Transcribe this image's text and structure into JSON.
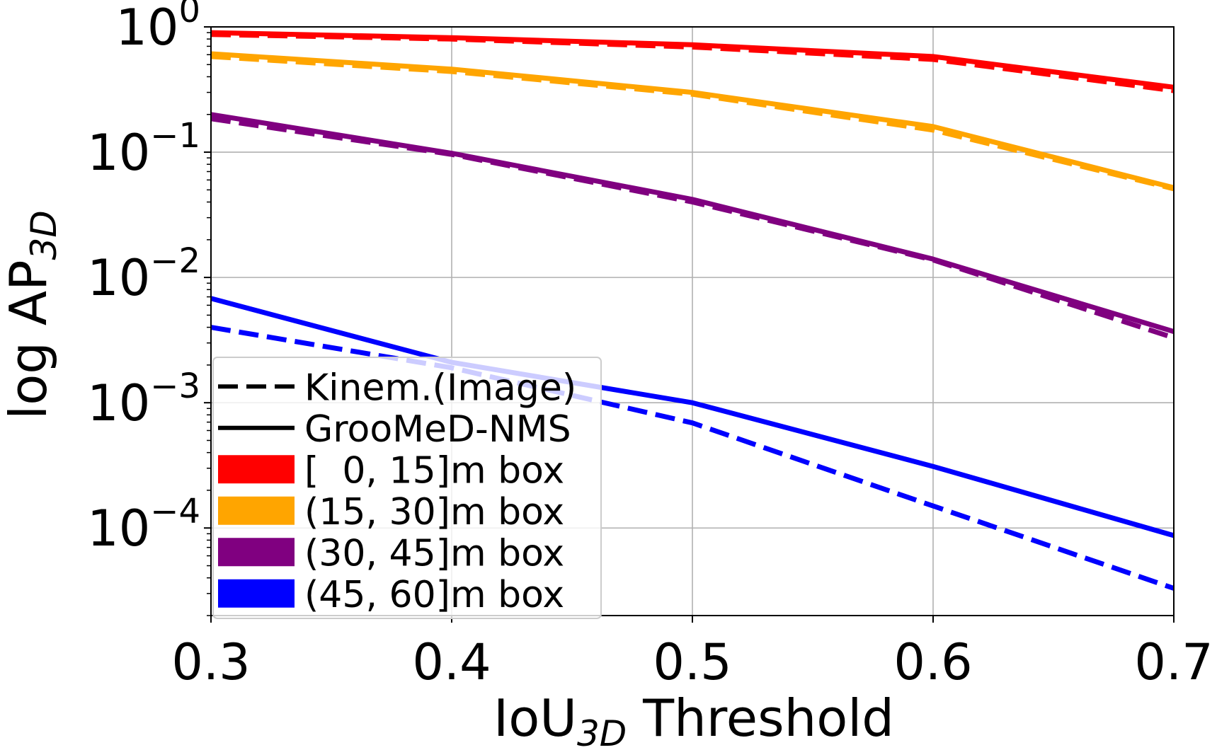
{
  "chart_data": {
    "type": "line",
    "xlabel": "IoU",
    "xlabel_sub": "3D",
    "xlabel_suffix": " Threshold",
    "ylabel": "log AP",
    "ylabel_sub": "3D",
    "y_scale": "log",
    "xlim": [
      0.3,
      0.7
    ],
    "ylim": [
      2e-05,
      1.0
    ],
    "grid": true,
    "legend_position": "lower-left",
    "x_ticks": [
      "0.3",
      "0.4",
      "0.5",
      "0.6",
      "0.7"
    ],
    "y_ticks": [
      {
        "base": "10",
        "exp": "0",
        "value": 1
      },
      {
        "base": "10",
        "exp": "−1",
        "value": 0.1
      },
      {
        "base": "10",
        "exp": "−2",
        "value": 0.01
      },
      {
        "base": "10",
        "exp": "−3",
        "value": 0.001
      },
      {
        "base": "10",
        "exp": "−4",
        "value": 0.0001
      }
    ],
    "x": [
      0.3,
      0.4,
      0.5,
      0.6,
      0.7
    ],
    "series": [
      {
        "name": "[  0, 15]m box",
        "method": "GrooMeD-NMS",
        "style": "solid",
        "color": "#ff0000",
        "values": [
          0.9,
          0.82,
          0.72,
          0.58,
          0.33
        ]
      },
      {
        "name": "[  0, 15]m box",
        "method": "Kinem.(Image)",
        "style": "dashed",
        "color": "#ff0000",
        "values": [
          0.87,
          0.8,
          0.69,
          0.55,
          0.31
        ]
      },
      {
        "name": "(15, 30]m box",
        "method": "GrooMeD-NMS",
        "style": "solid",
        "color": "#ffa500",
        "values": [
          0.61,
          0.46,
          0.3,
          0.16,
          0.052
        ]
      },
      {
        "name": "(15, 30]m box",
        "method": "Kinem.(Image)",
        "style": "dashed",
        "color": "#ffa500",
        "values": [
          0.58,
          0.44,
          0.29,
          0.15,
          0.051
        ]
      },
      {
        "name": "(30, 45]m box",
        "method": "GrooMeD-NMS",
        "style": "solid",
        "color": "#800080",
        "values": [
          0.2,
          0.098,
          0.042,
          0.014,
          0.0037
        ]
      },
      {
        "name": "(30, 45]m box",
        "method": "Kinem.(Image)",
        "style": "dashed",
        "color": "#800080",
        "values": [
          0.185,
          0.096,
          0.04,
          0.0138,
          0.0033
        ]
      },
      {
        "name": "(45, 60]m box",
        "method": "GrooMeD-NMS",
        "style": "solid",
        "color": "#0000ff",
        "values": [
          0.0068,
          0.0021,
          0.001,
          0.00031,
          8.7e-05
        ]
      },
      {
        "name": "(45, 60]m box",
        "method": "Kinem.(Image)",
        "style": "dashed",
        "color": "#0000ff",
        "values": [
          0.004,
          0.0019,
          0.00069,
          0.00015,
          3.3e-05
        ]
      }
    ],
    "legend": [
      {
        "label": "Kinem.(Image)",
        "kind": "line-dashed",
        "color": "#000000"
      },
      {
        "label": "GrooMeD-NMS",
        "kind": "line-solid",
        "color": "#000000"
      },
      {
        "label": "[  0, 15]m box",
        "kind": "patch",
        "color": "#ff0000"
      },
      {
        "label": "(15, 30]m box",
        "kind": "patch",
        "color": "#ffa500"
      },
      {
        "label": "(30, 45]m box",
        "kind": "patch",
        "color": "#800080"
      },
      {
        "label": "(45, 60]m box",
        "kind": "patch",
        "color": "#0000ff"
      }
    ]
  }
}
